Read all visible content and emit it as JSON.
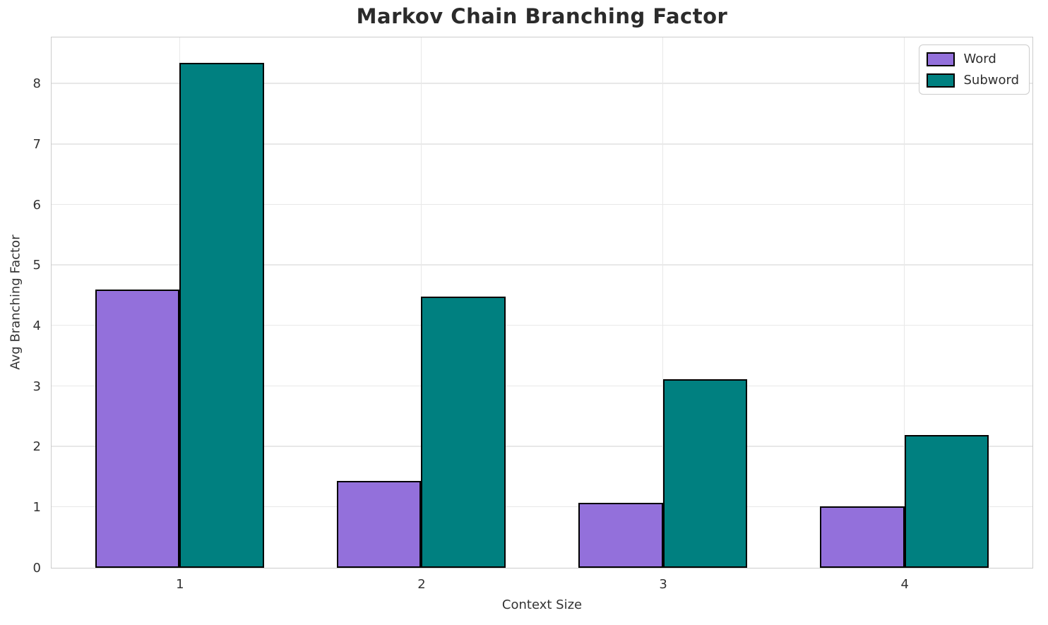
{
  "title": "Markov Chain Branching Factor",
  "chart_data": {
    "type": "bar",
    "title": "Markov Chain Branching Factor",
    "xlabel": "Context Size",
    "ylabel": "Avg Branching Factor",
    "categories": [
      "1",
      "2",
      "3",
      "4"
    ],
    "series": [
      {
        "name": "Word",
        "color": "#9370DB",
        "values": [
          4.6,
          1.44,
          1.08,
          1.02
        ]
      },
      {
        "name": "Subword",
        "color": "#008080",
        "values": [
          8.35,
          4.49,
          3.12,
          2.19
        ]
      }
    ],
    "yticks": [
      0,
      1,
      2,
      3,
      4,
      5,
      6,
      7,
      8
    ],
    "ylim": [
      0,
      8.77
    ],
    "bar_edge_color": "#000000",
    "grid": true,
    "grid_color": "#e8e8e8",
    "legend_position": "upper right",
    "text_color": "#333333"
  }
}
